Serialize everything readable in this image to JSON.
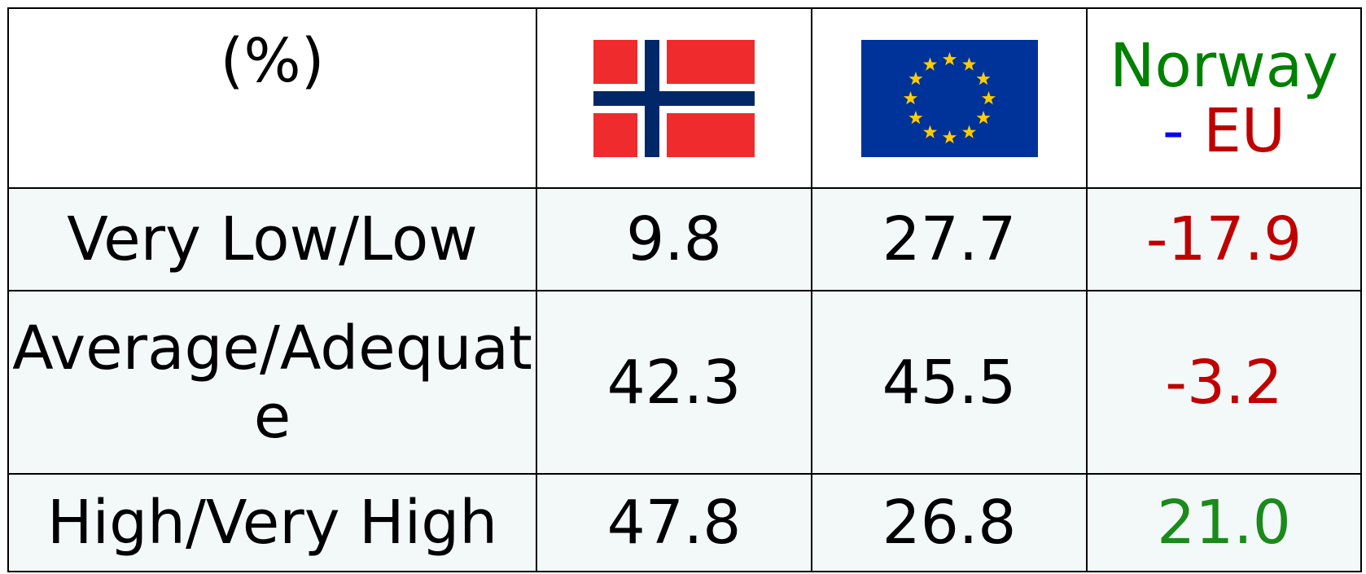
{
  "table": {
    "header": {
      "label": "(%)",
      "diff_label": {
        "left": "Norway",
        "dash": "-",
        "right": "EU"
      }
    },
    "header_colors": {
      "left": "#008000",
      "dash": "#0000ff",
      "right": "#c00000"
    },
    "rows": [
      {
        "label": "Very Low/Low",
        "norway": "9.8",
        "eu": "27.7",
        "diff": "-17.9",
        "diff_color": "#c00000"
      },
      {
        "label": "Average/Adequate",
        "norway": "42.3",
        "eu": "45.5",
        "diff": "-3.2",
        "diff_color": "#c00000"
      },
      {
        "label": "High/Very High",
        "norway": "47.8",
        "eu": "26.8",
        "diff": "21.0",
        "diff_color": "#1a8a1a"
      }
    ]
  }
}
